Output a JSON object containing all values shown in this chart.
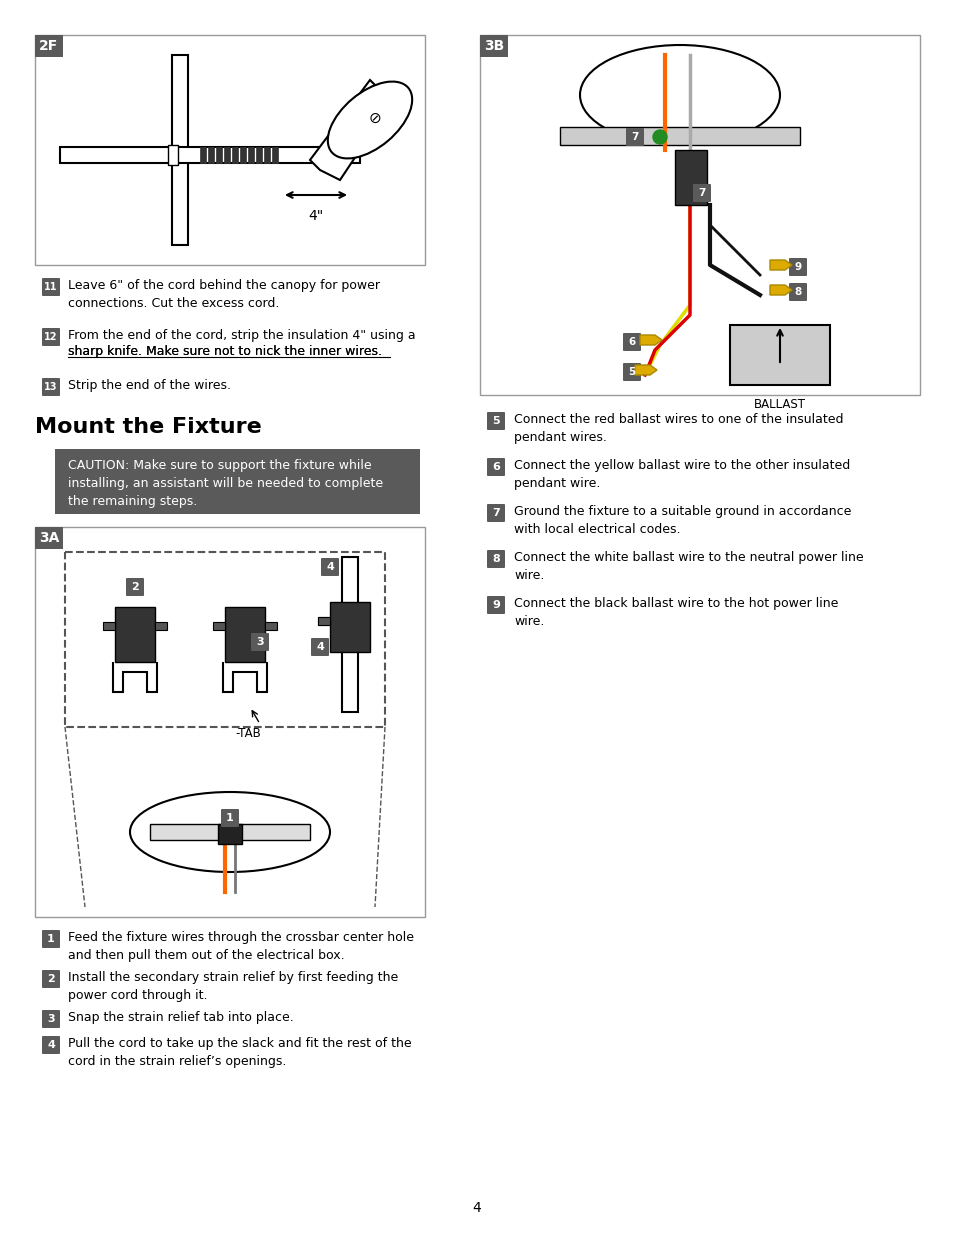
{
  "page_bg": "#ffffff",
  "page_number": "4",
  "header_bg": "#5a5a5a",
  "header_text_color": "#ffffff",
  "caution_bg": "#5a5a5a",
  "caution_text_color": "#ffffff",
  "step_badge_bg": "#5a5a5a",
  "step_badge_text": "#ffffff",
  "title_section": "Mount the Fixture",
  "caution_text": "CAUTION: Make sure to support the fixture while\ninstalling, an assistant will be needed to complete\nthe remaining steps.",
  "step_11_text": "Leave 6\" of the cord behind the canopy for power\nconnections. Cut the excess cord.",
  "step_12_text": "From the end of the cord, strip the insulation 4\" using a\nsharp knife. Make sure not to nick the inner wires.",
  "step_12_underline": "Make sure not to nick the inner wires",
  "step_13_text": "Strip the end of the wires.",
  "step_3A_1": "Feed the fixture wires through the crossbar center hole\nand then pull them out of the electrical box.",
  "step_3A_2": "Install the secondary strain relief by first feeding the\npower cord through it.",
  "step_3A_3": "Snap the strain relief tab into place.",
  "step_3A_4": "Pull the cord to take up the slack and fit the rest of the\ncord in the strain relief’s openings.",
  "step_5_text": "Connect the red ballast wires to one of the insulated\npendant wires.",
  "step_6_text": "Connect the yellow ballast wire to the other insulated\npendant wire.",
  "step_7_text": "Ground the fixture to a suitable ground in accordance\nwith local electrical codes.",
  "step_8_text": "Connect the white ballast wire to the neutral power line\nwire.",
  "step_9_text": "Connect the black ballast wire to the hot power line\nwire.",
  "label_2F": "2F",
  "label_3A": "3A",
  "label_3B": "3B",
  "label_ballast": "BALLAST",
  "label_tab": "-TAB",
  "dim_label": "4\""
}
